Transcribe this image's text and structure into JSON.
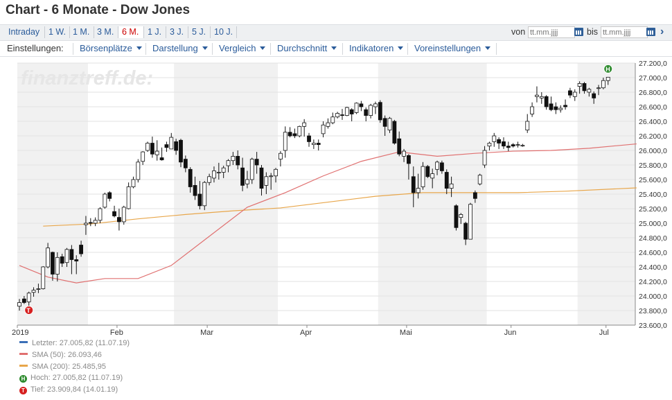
{
  "title": "Chart - 6 Monate - Dow Jones",
  "ranges": [
    {
      "label": "Intraday",
      "active": false
    },
    {
      "label": "1 W.",
      "active": false
    },
    {
      "label": "1 M.",
      "active": false
    },
    {
      "label": "3 M.",
      "active": false
    },
    {
      "label": "6 M.",
      "active": true
    },
    {
      "label": "1 J.",
      "active": false
    },
    {
      "label": "3 J.",
      "active": false
    },
    {
      "label": "5 J.",
      "active": false
    },
    {
      "label": "10 J.",
      "active": false
    }
  ],
  "date_range": {
    "from_label": "von",
    "to_label": "bis",
    "from_placeholder": "tt.mm.jjjj",
    "to_placeholder": "tt.mm.jjjj"
  },
  "settings": {
    "label": "Einstellungen:",
    "menus": [
      "Börsenplätze",
      "Darstellung",
      "Vergleich",
      "Durchschnitt",
      "Indikatoren",
      "Voreinstellungen"
    ]
  },
  "watermark": "finanztreff.de:",
  "colors": {
    "sma50": "#e07070",
    "sma200": "#e8a64a",
    "last": "#3a6fb7",
    "high": "#2e8b2e",
    "low": "#d62020",
    "shade": "#f1f1f1"
  },
  "legend": {
    "last": "Letzter: 27.005,82 (11.07.19)",
    "sma50": "SMA (50): 26.093,46",
    "sma200": "SMA (200): 25.485,95",
    "high": "Hoch: 27.005,82 (11.07.19)",
    "low": "Tief: 23.909,84 (14.01.19)",
    "high_marker": "H",
    "low_marker": "T"
  },
  "chart_data": {
    "type": "candlestick",
    "ylim": [
      23600,
      27200
    ],
    "y_ticks": [
      "27.200,0",
      "27.000,0",
      "26.800,0",
      "26.600,0",
      "26.400,0",
      "26.200,0",
      "26.000,0",
      "25.800,0",
      "25.600,0",
      "25.400,0",
      "25.200,0",
      "25.000,0",
      "24.800,0",
      "24.600,0",
      "24.400,0",
      "24.200,0",
      "24.000,0",
      "23.800,0",
      "23.600,0"
    ],
    "y_tick_values": [
      27200,
      27000,
      26800,
      26600,
      26400,
      26200,
      26000,
      25800,
      25600,
      25400,
      25200,
      25000,
      24800,
      24600,
      24400,
      24200,
      24000,
      23800,
      23600
    ],
    "month_labels": [
      {
        "label": "2019",
        "day": 0
      },
      {
        "label": "Feb",
        "day": 21
      },
      {
        "label": "Mar",
        "day": 40
      },
      {
        "label": "Apr",
        "day": 61
      },
      {
        "label": "Mai",
        "day": 82
      },
      {
        "label": "Jun",
        "day": 104
      },
      {
        "label": "Jul",
        "day": 124
      }
    ],
    "total_days": 130,
    "shaded_months": [
      [
        0,
        14
      ],
      [
        33,
        54
      ],
      [
        76,
        98
      ],
      [
        118,
        130
      ]
    ],
    "sma50": [
      [
        0,
        24420
      ],
      [
        6,
        24260
      ],
      [
        12,
        24180
      ],
      [
        18,
        24240
      ],
      [
        25,
        24240
      ],
      [
        32,
        24420
      ],
      [
        40,
        24820
      ],
      [
        48,
        25220
      ],
      [
        56,
        25420
      ],
      [
        64,
        25650
      ],
      [
        72,
        25850
      ],
      [
        80,
        25980
      ],
      [
        88,
        25920
      ],
      [
        96,
        25960
      ],
      [
        104,
        25990
      ],
      [
        112,
        26000
      ],
      [
        120,
        26030
      ],
      [
        130,
        26090
      ]
    ],
    "sma200": [
      [
        5,
        24960
      ],
      [
        15,
        24990
      ],
      [
        25,
        25060
      ],
      [
        35,
        25120
      ],
      [
        45,
        25170
      ],
      [
        55,
        25210
      ],
      [
        65,
        25290
      ],
      [
        75,
        25370
      ],
      [
        85,
        25420
      ],
      [
        95,
        25420
      ],
      [
        105,
        25420
      ],
      [
        115,
        25440
      ],
      [
        125,
        25470
      ],
      [
        130,
        25486
      ]
    ],
    "candles": [
      [
        0,
        23860,
        23960,
        23800,
        23910
      ],
      [
        1,
        23960,
        24000,
        23890,
        23910
      ],
      [
        2,
        23920,
        24060,
        23780,
        24040
      ],
      [
        3,
        24050,
        24120,
        23990,
        24080
      ],
      [
        4,
        24090,
        24170,
        24040,
        24100
      ],
      [
        5,
        24100,
        24410,
        24090,
        24400
      ],
      [
        6,
        24400,
        24730,
        24380,
        24660
      ],
      [
        7,
        24600,
        24610,
        24210,
        24300
      ],
      [
        8,
        24300,
        24600,
        24200,
        24530
      ],
      [
        9,
        24540,
        24580,
        24400,
        24450
      ],
      [
        10,
        24460,
        24660,
        24400,
        24640
      ],
      [
        11,
        24640,
        24700,
        24300,
        24500
      ],
      [
        12,
        24500,
        24560,
        24300,
        24480
      ],
      [
        13,
        24700,
        24760,
        24540,
        24580
      ],
      [
        14,
        24980,
        25100,
        24840,
        25000
      ],
      [
        15,
        25010,
        25070,
        24960,
        25000
      ],
      [
        16,
        25000,
        25080,
        24960,
        25040
      ],
      [
        17,
        25040,
        25220,
        25000,
        25200
      ],
      [
        18,
        25220,
        25420,
        25200,
        25400
      ],
      [
        19,
        25420,
        25440,
        25300,
        25340
      ],
      [
        20,
        25160,
        25240,
        25080,
        25100
      ],
      [
        21,
        25080,
        25200,
        24900,
        25020
      ],
      [
        22,
        25020,
        25240,
        24980,
        25220
      ],
      [
        23,
        25200,
        25560,
        25190,
        25500
      ],
      [
        24,
        25500,
        25640,
        25480,
        25600
      ],
      [
        25,
        25600,
        25880,
        25560,
        25840
      ],
      [
        26,
        25850,
        25990,
        25800,
        25980
      ],
      [
        27,
        26000,
        26120,
        25980,
        26100
      ],
      [
        28,
        26100,
        26190,
        25900,
        25950
      ],
      [
        29,
        25940,
        26140,
        25860,
        25990
      ],
      [
        30,
        25900,
        26040,
        25860,
        25870
      ],
      [
        31,
        26080,
        26120,
        25980,
        26040
      ],
      [
        32,
        26020,
        26240,
        26020,
        26180
      ],
      [
        33,
        26120,
        26160,
        25940,
        26000
      ],
      [
        34,
        26140,
        26160,
        25770,
        25840
      ],
      [
        35,
        25880,
        25930,
        25700,
        25760
      ],
      [
        36,
        25740,
        25770,
        25420,
        25500
      ],
      [
        37,
        25520,
        25640,
        25320,
        25380
      ],
      [
        38,
        25400,
        25580,
        25190,
        25240
      ],
      [
        39,
        25240,
        25580,
        25180,
        25560
      ],
      [
        40,
        25560,
        25680,
        25520,
        25640
      ],
      [
        41,
        25620,
        25780,
        25560,
        25720
      ],
      [
        42,
        25700,
        25830,
        25600,
        25700
      ],
      [
        43,
        25700,
        25790,
        25620,
        25760
      ],
      [
        44,
        25790,
        25880,
        25700,
        25860
      ],
      [
        45,
        25860,
        25980,
        25800,
        25920
      ],
      [
        46,
        25920,
        26000,
        25740,
        25800
      ],
      [
        47,
        25760,
        25900,
        25440,
        25520
      ],
      [
        48,
        25540,
        25720,
        25480,
        25600
      ],
      [
        49,
        25600,
        25900,
        25540,
        25880
      ],
      [
        50,
        25880,
        25980,
        25680,
        25800
      ],
      [
        51,
        25760,
        25800,
        25380,
        25480
      ],
      [
        52,
        25520,
        25700,
        25400,
        25640
      ],
      [
        53,
        25640,
        25690,
        25460,
        25650
      ],
      [
        54,
        25650,
        25760,
        25560,
        25740
      ],
      [
        55,
        25880,
        25990,
        25780,
        25960
      ],
      [
        56,
        26000,
        26330,
        25900,
        26250
      ],
      [
        57,
        26250,
        26320,
        26180,
        26200
      ],
      [
        58,
        26230,
        26300,
        26170,
        26200
      ],
      [
        59,
        26200,
        26340,
        26180,
        26330
      ],
      [
        60,
        26330,
        26430,
        26190,
        26380
      ],
      [
        61,
        26200,
        26240,
        26050,
        26120
      ],
      [
        62,
        26080,
        26150,
        26020,
        26100
      ],
      [
        63,
        26100,
        26150,
        26000,
        26080
      ],
      [
        64,
        26230,
        26400,
        26180,
        26350
      ],
      [
        65,
        26330,
        26440,
        26300,
        26380
      ],
      [
        66,
        26380,
        26520,
        26360,
        26460
      ],
      [
        67,
        26460,
        26530,
        26440,
        26510
      ],
      [
        68,
        26490,
        26570,
        26420,
        26480
      ],
      [
        69,
        26480,
        26600,
        26470,
        26590
      ],
      [
        70,
        26560,
        26580,
        26400,
        26500
      ],
      [
        71,
        26520,
        26660,
        26500,
        26650
      ],
      [
        72,
        26640,
        26680,
        26540,
        26600
      ],
      [
        73,
        26560,
        26590,
        26400,
        26480
      ],
      [
        74,
        26480,
        26640,
        26440,
        26620
      ],
      [
        75,
        26600,
        26670,
        26500,
        26640
      ],
      [
        76,
        26660,
        26690,
        26380,
        26420
      ],
      [
        77,
        26440,
        26480,
        26200,
        26330
      ],
      [
        78,
        26280,
        26460,
        26240,
        26440
      ],
      [
        79,
        26400,
        26420,
        26080,
        26100
      ],
      [
        80,
        26160,
        26260,
        25920,
        25950
      ],
      [
        81,
        25920,
        26020,
        25840,
        25990
      ],
      [
        82,
        25930,
        25950,
        25600,
        25820
      ],
      [
        83,
        25640,
        25780,
        25220,
        25420
      ],
      [
        84,
        25420,
        25680,
        25340,
        25480
      ],
      [
        85,
        25500,
        25840,
        25460,
        25780
      ],
      [
        86,
        25780,
        25800,
        25620,
        25640
      ],
      [
        87,
        25620,
        25750,
        25480,
        25680
      ],
      [
        88,
        25740,
        25860,
        25660,
        25840
      ],
      [
        89,
        25830,
        25860,
        25680,
        25720
      ],
      [
        90,
        25700,
        25740,
        25400,
        25480
      ],
      [
        91,
        25480,
        25640,
        25360,
        25540
      ],
      [
        92,
        25240,
        25260,
        24900,
        24940
      ],
      [
        93,
        25080,
        25140,
        24990,
        25120
      ],
      [
        94,
        25000,
        25020,
        24700,
        24780
      ],
      [
        95,
        24780,
        25280,
        24780,
        25260
      ],
      [
        96,
        25420,
        25450,
        25280,
        25340
      ],
      [
        97,
        25540,
        25680,
        25520,
        25660
      ],
      [
        98,
        25800,
        26060,
        25760,
        26000
      ],
      [
        99,
        26060,
        26120,
        26000,
        26100
      ],
      [
        100,
        26120,
        26240,
        26050,
        26200
      ],
      [
        101,
        26150,
        26180,
        26020,
        26100
      ],
      [
        102,
        26120,
        26180,
        26020,
        26060
      ],
      [
        103,
        26060,
        26120,
        25990,
        26040
      ],
      [
        104,
        26080,
        26100,
        26040,
        26060
      ],
      [
        105,
        26080,
        26120,
        26040,
        26080
      ],
      [
        106,
        26060,
        26090,
        26050,
        26070
      ],
      [
        107,
        26280,
        26500,
        26240,
        26400
      ],
      [
        108,
        26500,
        26660,
        26460,
        26600
      ],
      [
        109,
        26740,
        26880,
        26660,
        26760
      ],
      [
        110,
        26720,
        26800,
        26640,
        26740
      ],
      [
        111,
        26740,
        26760,
        26560,
        26600
      ],
      [
        112,
        26640,
        26740,
        26540,
        26560
      ],
      [
        113,
        26600,
        26660,
        26500,
        26560
      ],
      [
        114,
        26560,
        26620,
        26520,
        26580
      ],
      [
        115,
        26620,
        26700,
        26560,
        26600
      ],
      [
        116,
        26820,
        26860,
        26720,
        26760
      ],
      [
        117,
        26740,
        26840,
        26680,
        26800
      ],
      [
        118,
        26880,
        26950,
        26780,
        26920
      ],
      [
        119,
        26920,
        26940,
        26780,
        26820
      ],
      [
        120,
        26800,
        26860,
        26740,
        26840
      ],
      [
        121,
        26780,
        26810,
        26640,
        26720
      ],
      [
        122,
        26850,
        26900,
        26760,
        26860
      ],
      [
        123,
        26860,
        27000,
        26840,
        26960
      ],
      [
        124,
        26960,
        27010,
        26900,
        27006
      ]
    ],
    "high_point": [
      124,
      27006
    ],
    "low_point": [
      2,
      23910
    ]
  }
}
